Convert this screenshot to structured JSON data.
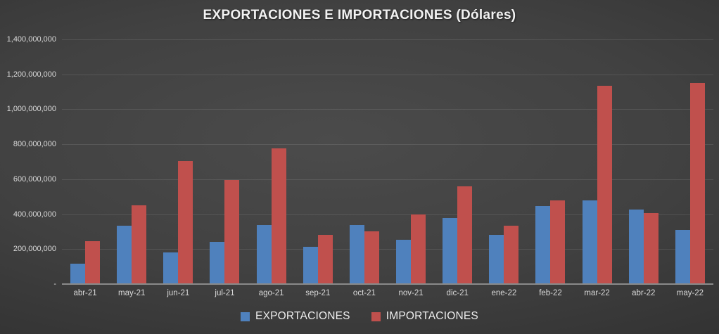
{
  "title": "EXPORTACIONES E IMPORTACIONES (Dólares)",
  "chart_data": {
    "type": "bar",
    "title": "EXPORTACIONES E IMPORTACIONES (Dólares)",
    "xlabel": "",
    "ylabel": "",
    "categories": [
      "abr-21",
      "may-21",
      "jun-21",
      "jul-21",
      "ago-21",
      "sep-21",
      "oct-21",
      "nov-21",
      "dic-21",
      "ene-22",
      "feb-22",
      "mar-22",
      "abr-22",
      "may-22"
    ],
    "series": [
      {
        "name": "EXPORTACIONES",
        "color": "#4F81BD",
        "values": [
          115000000,
          335000000,
          180000000,
          240000000,
          340000000,
          215000000,
          340000000,
          255000000,
          380000000,
          280000000,
          445000000,
          480000000,
          425000000,
          310000000
        ]
      },
      {
        "name": "IMPORTACIONES",
        "color": "#C0504D",
        "values": [
          245000000,
          450000000,
          705000000,
          595000000,
          775000000,
          280000000,
          300000000,
          400000000,
          560000000,
          335000000,
          480000000,
          1135000000,
          405000000,
          1150000000
        ]
      }
    ],
    "ylim": [
      0,
      1400000000
    ],
    "ytick_step": 200000000,
    "ytick_labels_top_down": [
      "1,400,000,000",
      "1,200,000,000",
      "1,000,000,000",
      "800,000,000",
      "600,000,000",
      "400,000,000",
      "200,000,000",
      "-"
    ],
    "grid": true,
    "legend_position": "bottom"
  },
  "colors": {
    "bar_blue": "#4F81BD",
    "bar_red": "#C0504D",
    "axis_line": "#8a8a8a",
    "gridline": "rgba(255,255,255,0.10)",
    "tick_text": "#d9d9d9",
    "title_text": "#f2f2f2",
    "legend_text": "#ededed"
  }
}
